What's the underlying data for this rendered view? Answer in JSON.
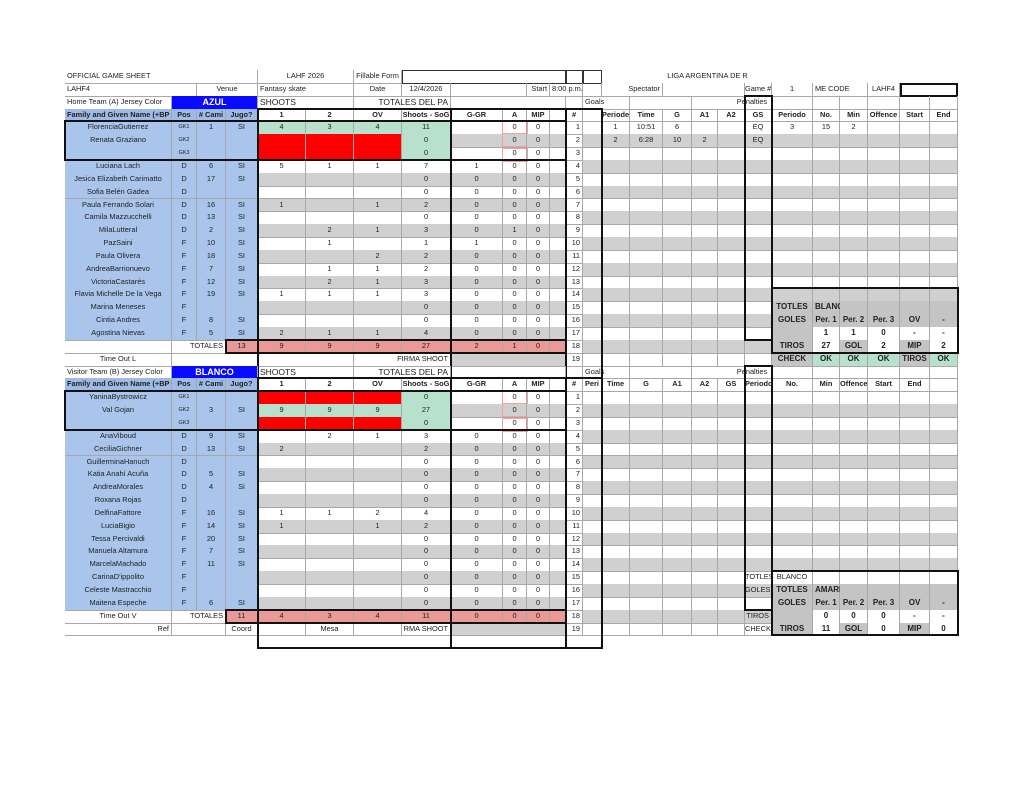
{
  "header": {
    "title": "OFFICIAL GAME SHEET",
    "event": "LAHF 2026",
    "fillable_label": "Fillable Form",
    "league_code": "LAHF4",
    "league_name": "LIGA ARGENTINA DE R",
    "venue_label": "Venue",
    "venue": "Fantasy skate",
    "date_label": "Date",
    "date": "12/4/2026",
    "start_label": "Start",
    "start": "8:00 p.m.",
    "spectator_label": "Spectator",
    "game_label": "Game #",
    "game": "1",
    "me_code_label": "ME CODE",
    "me_code": "LAHF4"
  },
  "colors": {
    "jersey_blue": "#0a0aff",
    "shot_ok": "#b7e1cd",
    "shot_blocked": "#ff0000",
    "totals": "#ea9999",
    "player_bg": "#a9c5eb"
  },
  "teams": [
    {
      "jersey_label": "Home Team (A) Jersey Color",
      "jersey_color": "AZUL",
      "shoots_label": "SHOOTS",
      "totals_label": "TOTALES DEL PA",
      "goals_label": "Goals",
      "penalties_label": "Penalties",
      "columns": [
        "Family and Given Name (+BP +C",
        "Pos",
        "# Cami",
        "Jugo?",
        "1",
        "2",
        "OV",
        "Shoots - SoG",
        "G-GR",
        "A",
        "MIP",
        "",
        "#"
      ],
      "right_columns": [
        "",
        "Periode",
        "Time",
        "G",
        "A1",
        "A2",
        "GS",
        "Periodo",
        "No.",
        "Min",
        "Offence",
        "Start",
        "End"
      ],
      "goalie_shots": [
        "green",
        "red",
        "red"
      ],
      "players": [
        [
          "FlorenciaGutierrez",
          "GK1",
          "1",
          "SI",
          "4",
          "3",
          "4",
          "11",
          "",
          "0",
          "0"
        ],
        [
          "Renata Graziano",
          "GK2",
          "",
          "",
          "",
          "",
          "",
          "0",
          "",
          "0",
          "0"
        ],
        [
          "",
          "GK3",
          "",
          "",
          "",
          "",
          "",
          "0",
          "",
          "0",
          "0"
        ],
        [
          "Luciana Lach",
          "D",
          "6",
          "SI",
          "5",
          "1",
          "1",
          "7",
          "1",
          "0",
          "0"
        ],
        [
          "Jesica Elizabeth Carimatto",
          "D",
          "17",
          "SI",
          "",
          "",
          "",
          "0",
          "0",
          "0",
          "0"
        ],
        [
          "Sofia Belén Gadea",
          "D",
          "",
          "",
          "",
          "",
          "",
          "0",
          "0",
          "0",
          "0"
        ],
        [
          "Paula Ferrando Solari",
          "D",
          "16",
          "SI",
          "1",
          "",
          "1",
          "2",
          "0",
          "0",
          "0"
        ],
        [
          "Camila Mazzucchelli",
          "D",
          "13",
          "SI",
          "",
          "",
          "",
          "0",
          "0",
          "0",
          "0"
        ],
        [
          "MilaLutteral",
          "D",
          "2",
          "SI",
          "",
          "2",
          "1",
          "3",
          "0",
          "1",
          "0"
        ],
        [
          "PazSaini",
          "F",
          "10",
          "SI",
          "",
          "1",
          "",
          "1",
          "1",
          "0",
          "0"
        ],
        [
          "Paula Olivera",
          "F",
          "18",
          "SI",
          "",
          "",
          "2",
          "2",
          "0",
          "0",
          "0"
        ],
        [
          "AndreaBarrionuevo",
          "F",
          "7",
          "SI",
          "",
          "1",
          "1",
          "2",
          "0",
          "0",
          "0"
        ],
        [
          "VictoriaCastarés",
          "F",
          "12",
          "SI",
          "",
          "2",
          "1",
          "3",
          "0",
          "0",
          "0"
        ],
        [
          "Flavia Michelle De la Vega",
          "F",
          "19",
          "SI",
          "1",
          "1",
          "1",
          "3",
          "0",
          "0",
          "0"
        ],
        [
          "Marina Meneses",
          "F",
          "",
          "",
          "",
          "",
          "",
          "0",
          "0",
          "0",
          "0"
        ],
        [
          "Cintia Andres",
          "F",
          "8",
          "SI",
          "",
          "",
          "",
          "0",
          "0",
          "0",
          "0"
        ],
        [
          "Agostina Nievas",
          "F",
          "5",
          "SI",
          "2",
          "1",
          "1",
          "4",
          "0",
          "0",
          "0"
        ]
      ],
      "totals_row_label": "TOTALES",
      "totals": [
        "13",
        "9",
        "9",
        "9",
        "27",
        "2",
        "1",
        "0"
      ],
      "footer": {
        "timeout": "Time Out L",
        "signature": "FIRMA SHOOT"
      },
      "right_rows": {
        "1": [
          "",
          "1",
          "10:51",
          "6",
          "",
          "",
          "EQ",
          "3",
          "15",
          "2",
          "",
          "",
          ""
        ],
        "2": [
          "",
          "2",
          "6:28",
          "10",
          "2",
          "",
          "EQ",
          "",
          "",
          "",
          "",
          "",
          ""
        ],
        "15": [
          "",
          "",
          "",
          "",
          "",
          "",
          "",
          "TOTLES",
          "BLANCO",
          "",
          "",
          "",
          ""
        ],
        "16": [
          "",
          "",
          "",
          "",
          "",
          "",
          "",
          "GOLES",
          "Per. 1",
          "Per. 2",
          "Per. 3",
          "OV",
          "-"
        ],
        "17": [
          "",
          "",
          "",
          "",
          "",
          "",
          "",
          "",
          "1",
          "1",
          "0",
          "-",
          "-"
        ],
        "18": [
          "",
          "",
          "",
          "",
          "",
          "",
          "",
          "TIROS",
          "27",
          "GOL",
          "2",
          "MIP",
          "2"
        ],
        "19": [
          "",
          "",
          "",
          "",
          "",
          "",
          "",
          "CHECK",
          "OK",
          "OK",
          "OK",
          "TIROS",
          "OK"
        ]
      }
    },
    {
      "jersey_label": "Visitor Team (B) Jersey Color",
      "jersey_color": "BLANCO",
      "shoots_label": "SHOOTS",
      "totals_label": "TOTALES DEL PA",
      "goals_label": "Goals",
      "penalties_label": "Penalties",
      "columns": [
        "Family and Given Name (+BP +C",
        "Pos",
        "# Cami",
        "Jugo?",
        "1",
        "2",
        "OV",
        "Shoots - SoG",
        "G-GR",
        "A",
        "MIP",
        "",
        "#"
      ],
      "right_columns": [
        "Peri",
        "Time",
        "G",
        "A1",
        "A2",
        "GS",
        "Periodo",
        "No.",
        "Min",
        "Offence",
        "Start",
        "End",
        ""
      ],
      "goalie_shots": [
        "red",
        "green",
        "red"
      ],
      "players": [
        [
          "YaninaBystrowicz",
          "GK1",
          "",
          "",
          "",
          "",
          "",
          "0",
          "",
          "0",
          "0"
        ],
        [
          "Val Gojan",
          "GK2",
          "3",
          "SI",
          "9",
          "9",
          "9",
          "27",
          "",
          "0",
          "0"
        ],
        [
          "",
          "GK3",
          "",
          "",
          "",
          "",
          "",
          "0",
          "",
          "0",
          "0"
        ],
        [
          "AnaViboud",
          "D",
          "9",
          "SI",
          "",
          "2",
          "1",
          "3",
          "0",
          "0",
          "0"
        ],
        [
          "CeciliaGichner",
          "D",
          "13",
          "SI",
          "2",
          "",
          "",
          "2",
          "0",
          "0",
          "0"
        ],
        [
          "GuillerminaHanuch",
          "D",
          "",
          "",
          "",
          "",
          "",
          "0",
          "0",
          "0",
          "0"
        ],
        [
          "Katia Anahí Acuña",
          "D",
          "5",
          "SI",
          "",
          "",
          "",
          "0",
          "0",
          "0",
          "0"
        ],
        [
          "AndreaMorales",
          "D",
          "4",
          "Si",
          "",
          "",
          "",
          "0",
          "0",
          "0",
          "0"
        ],
        [
          "Roxana Rojas",
          "D",
          "",
          "",
          "",
          "",
          "",
          "0",
          "0",
          "0",
          "0"
        ],
        [
          "DelfinaFattore",
          "F",
          "16",
          "SI",
          "1",
          "1",
          "2",
          "4",
          "0",
          "0",
          "0"
        ],
        [
          "LuciaBigio",
          "F",
          "14",
          "SI",
          "1",
          "",
          "1",
          "2",
          "0",
          "0",
          "0"
        ],
        [
          "Tessa Percivaldi",
          "F",
          "20",
          "SI",
          "",
          "",
          "",
          "0",
          "0",
          "0",
          "0"
        ],
        [
          "Manuela Altamura",
          "F",
          "7",
          "SI",
          "",
          "",
          "",
          "0",
          "0",
          "0",
          "0"
        ],
        [
          "MarcelaMachado",
          "F",
          "11",
          "SI",
          "",
          "",
          "",
          "0",
          "0",
          "0",
          "0"
        ],
        [
          "CarinaD'ippolito",
          "F",
          "",
          "",
          "",
          "",
          "",
          "0",
          "0",
          "0",
          "0"
        ],
        [
          "Celeste Mastracchio",
          "F",
          "",
          "",
          "",
          "",
          "",
          "0",
          "0",
          "0",
          "0"
        ],
        [
          "Maitena Espeche",
          "F",
          "6",
          "SI",
          "",
          "",
          "",
          "0",
          "0",
          "0",
          "0"
        ]
      ],
      "totals_row_label": "TOTALES",
      "totals": [
        "11",
        "4",
        "3",
        "4",
        "11",
        "0",
        "0",
        "0"
      ],
      "footer": {
        "timeout": "Time Out V",
        "ref": "Ref",
        "coord": "Coord",
        "mesa": "Mesa",
        "signature": "RMA SHOOT"
      },
      "right_rows": {
        "15": [
          "",
          "",
          "",
          "",
          "",
          "",
          "TOTLES",
          "BLANCO",
          "",
          "",
          "",
          "",
          ""
        ],
        "16": [
          "",
          "",
          "",
          "",
          "",
          "",
          "GOLES",
          "TOTLES",
          "AMARILLO",
          "",
          "",
          "",
          ""
        ],
        "17": [
          "",
          "",
          "",
          "",
          "",
          "",
          "",
          "GOLES",
          "Per. 1",
          "Per. 2",
          "Per. 3",
          "OV",
          "-"
        ],
        "18": [
          "",
          "",
          "",
          "",
          "",
          "",
          "TIROS",
          "",
          "0",
          "0",
          "0",
          "-",
          "-"
        ],
        "19": [
          "",
          "",
          "",
          "",
          "",
          "",
          "CHECK",
          "TIROS",
          "11",
          "GOL",
          "0",
          "MIP",
          "0"
        ]
      }
    }
  ]
}
